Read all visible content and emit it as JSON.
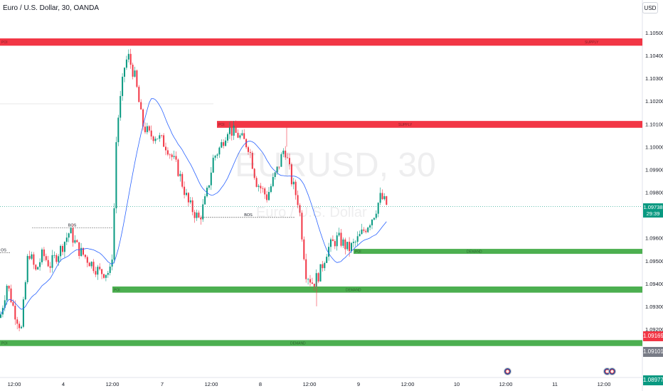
{
  "header": {
    "symbol_title": "Euro / U.S. Dollar, 30, OANDA",
    "currency_button": "USD"
  },
  "watermark": {
    "main": "EURUSD, 30",
    "sub": "Euro / U.S. Dollar"
  },
  "current_price": {
    "value": "1.09738",
    "countdown": "29:39"
  },
  "price_tags": [
    {
      "value": "1.09169",
      "price": 1.09169,
      "color": "#f23645"
    },
    {
      "value": "1.09101",
      "price": 1.09101,
      "color": "#787b86"
    },
    {
      "value": "1.08977",
      "price": 1.08977,
      "color": "#089981"
    }
  ],
  "chart_data": {
    "type": "candlestick",
    "y_axis": {
      "ticks": [
        "1.10500",
        "1.10400",
        "1.10300",
        "1.10200",
        "1.10100",
        "1.10000",
        "1.09900",
        "1.09800",
        "1.09600",
        "1.09500",
        "1.09400",
        "1.09300",
        "1.09200"
      ],
      "range": [
        1.0889,
        1.1066
      ],
      "position": "right"
    },
    "x_axis": {
      "tick_labels": [
        "12:00",
        "4",
        "12:00",
        "7",
        "12:00",
        "8",
        "12:00",
        "9",
        "12:00",
        "10",
        "12:00",
        "11",
        "12:00"
      ]
    },
    "zones": [
      {
        "kind": "supply",
        "price_top": 1.10475,
        "price_bottom": 1.10443,
        "x_start": 0,
        "label_left": "POI",
        "label_right": "SUPPLY",
        "color": "#f23645"
      },
      {
        "kind": "supply",
        "price_top": 1.10113,
        "price_bottom": 1.10083,
        "x_start": 305,
        "label_left": "POI",
        "label_right": "SUPPLY",
        "color": "#f23645"
      },
      {
        "kind": "demand",
        "price_top": 1.09552,
        "price_bottom": 1.09532,
        "x_start": 497,
        "label_left": "POI",
        "label_right": "DEMAND",
        "color": "#4caf50"
      },
      {
        "kind": "demand",
        "price_top": 1.09387,
        "price_bottom": 1.0936,
        "x_start": 158,
        "label_left": "POI",
        "label_right": "DEMAND",
        "color": "#4caf50"
      },
      {
        "kind": "demand",
        "price_top": 1.09152,
        "price_bottom": 1.09126,
        "x_start": 0,
        "label_left": "POI",
        "label_right": "DEMAND",
        "color": "#4caf50"
      }
    ],
    "bos_lines": [
      {
        "label": "BOS",
        "price": 1.09645,
        "x_start": 45,
        "x_end": 158
      },
      {
        "label": "BOS",
        "price": 1.0969,
        "x_start": 283,
        "x_end": 415
      },
      {
        "label": "BOS",
        "price": 1.09535,
        "x_start": -20,
        "x_end": 15,
        "label_text": "OS"
      }
    ],
    "candles": {
      "up_color": "#089981",
      "down_color": "#f23645",
      "ma_color": "#2962ff"
    }
  }
}
